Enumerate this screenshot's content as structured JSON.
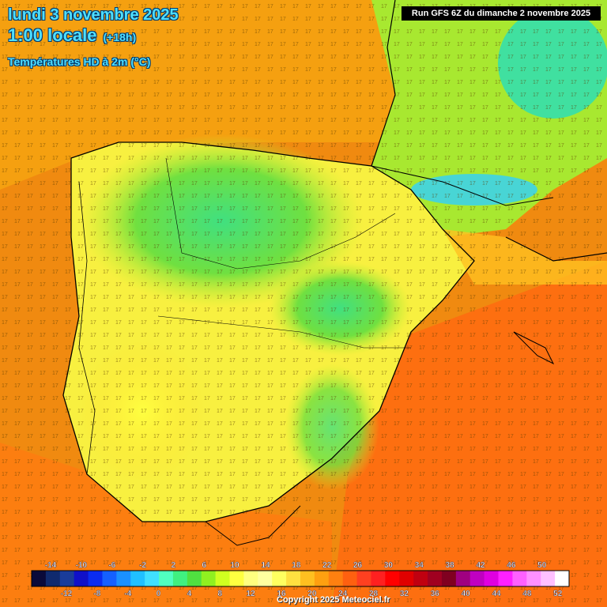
{
  "header": {
    "date": "lundi 3 novembre 2025",
    "time": "1:00 locale",
    "lead": "(+18h)",
    "variable": "Températures HD à 2m (°C)"
  },
  "run_label": "Run GFS 6Z du dimanche 2 novembre 2025",
  "copyright": "Copyright 2025 Meteociel.fr",
  "legend": {
    "upper_labels": [
      "-14",
      "-10",
      "-6",
      "-2",
      "2",
      "6",
      "10",
      "14",
      "18",
      "22",
      "26",
      "30",
      "34",
      "38",
      "42",
      "46",
      "50"
    ],
    "lower_labels": [
      "-12",
      "-8",
      "-4",
      "0",
      "4",
      "8",
      "12",
      "16",
      "20",
      "24",
      "28",
      "32",
      "36",
      "40",
      "44",
      "48",
      "52"
    ],
    "colors": [
      "#0a0a3a",
      "#102a6e",
      "#1a3c9a",
      "#1010c8",
      "#0a2cf0",
      "#1460ff",
      "#1a90ff",
      "#20c0ff",
      "#40e0ff",
      "#50ffc0",
      "#40f080",
      "#50e040",
      "#90f020",
      "#d0ff20",
      "#ffff40",
      "#ffff80",
      "#ffffa0",
      "#ffff60",
      "#ffe040",
      "#ffc020",
      "#ffa010",
      "#ff8010",
      "#ff6010",
      "#ff4020",
      "#ff2020",
      "#ff0000",
      "#e00000",
      "#c00010",
      "#a00020",
      "#800020",
      "#a00080",
      "#c000c0",
      "#e000e0",
      "#ff20ff",
      "#ff60ff",
      "#ff90ff",
      "#ffc0ff",
      "#ffffff"
    ]
  },
  "colors": {
    "sea_warm": "#f08a10",
    "land_cool": "#50e040",
    "title": "#4fe0ff"
  }
}
